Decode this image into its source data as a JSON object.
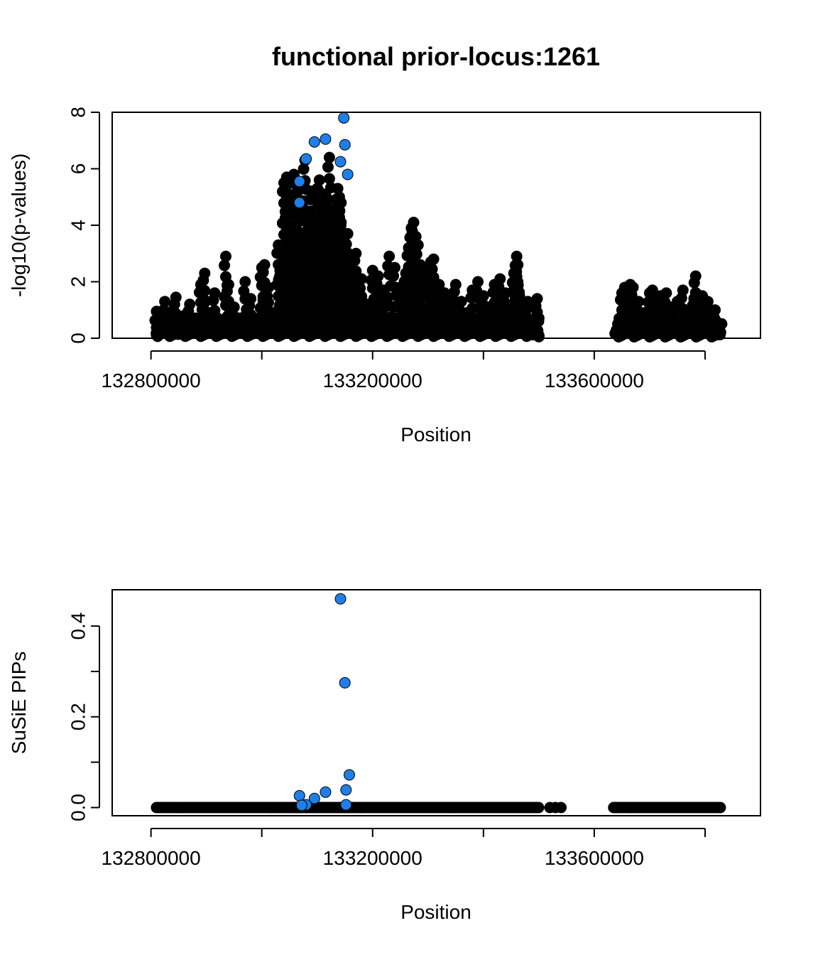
{
  "chart_data": [
    {
      "type": "scatter",
      "title": "functional prior-locus:1261",
      "xlabel": "Position",
      "ylabel": "-log10(p-values)",
      "xlim": [
        132730000,
        133900000
      ],
      "ylim": [
        0,
        8
      ],
      "xticks": [
        132800000,
        133000000,
        133200000,
        133400000,
        133600000,
        133800000
      ],
      "xtick_labels": [
        "132800000",
        "",
        "133200000",
        "",
        "133600000",
        ""
      ],
      "yticks": [
        0,
        2,
        4,
        6,
        8
      ],
      "ytick_labels": [
        "0",
        "2",
        "4",
        "6",
        "8"
      ],
      "grid": false,
      "series": [
        {
          "color": "#000000",
          "note_points": "background cloud (dense black points)",
          "points": [
            [
              132810000,
              0.95
            ],
            [
              132812000,
              0.2
            ],
            [
              132820000,
              0.6
            ],
            [
              132825000,
              1.3
            ],
            [
              132835000,
              0.4
            ],
            [
              132840000,
              1.0
            ],
            [
              132845000,
              1.45
            ],
            [
              132850000,
              0.3
            ],
            [
              132860000,
              0.8
            ],
            [
              132870000,
              1.2
            ],
            [
              132880000,
              0.5
            ],
            [
              132890000,
              1.9
            ],
            [
              132897000,
              2.3
            ],
            [
              132905000,
              0.9
            ],
            [
              132915000,
              1.6
            ],
            [
              132925000,
              0.4
            ],
            [
              132935000,
              2.9
            ],
            [
              132940000,
              1.9
            ],
            [
              132950000,
              1.1
            ],
            [
              132960000,
              0.6
            ],
            [
              132970000,
              2.0
            ],
            [
              132980000,
              1.4
            ],
            [
              132990000,
              0.7
            ],
            [
              133000000,
              2.5
            ],
            [
              133005000,
              2.6
            ],
            [
              133012000,
              1.8
            ],
            [
              133020000,
              0.9
            ],
            [
              133030000,
              3.3
            ],
            [
              133033000,
              2.4
            ],
            [
              133040000,
              5.5
            ],
            [
              133045000,
              5.7
            ],
            [
              133048000,
              4.0
            ],
            [
              133050000,
              4.7
            ],
            [
              133055000,
              3.2
            ],
            [
              133058000,
              5.8
            ],
            [
              133062000,
              3.9
            ],
            [
              133065000,
              5.2
            ],
            [
              133068000,
              2.6
            ],
            [
              133072000,
              3.5
            ],
            [
              133078000,
              6.3
            ],
            [
              133082000,
              4.5
            ],
            [
              133085000,
              3.0
            ],
            [
              133090000,
              5.2
            ],
            [
              133093000,
              4.2
            ],
            [
              133097000,
              3.1
            ],
            [
              133100000,
              5.3
            ],
            [
              133104000,
              5.6
            ],
            [
              133108000,
              4.3
            ],
            [
              133112000,
              4.7
            ],
            [
              133115000,
              5.1
            ],
            [
              133118000,
              4.0
            ],
            [
              133122000,
              6.4
            ],
            [
              133126000,
              4.3
            ],
            [
              133130000,
              2.0
            ],
            [
              133134000,
              4.1
            ],
            [
              133137000,
              5.3
            ],
            [
              133140000,
              5.0
            ],
            [
              133143000,
              4.8
            ],
            [
              133146000,
              3.5
            ],
            [
              133150000,
              2.9
            ],
            [
              133155000,
              3.7
            ],
            [
              133160000,
              2.5
            ],
            [
              133170000,
              3.0
            ],
            [
              133180000,
              2.1
            ],
            [
              133190000,
              1.2
            ],
            [
              133200000,
              2.4
            ],
            [
              133210000,
              2.2
            ],
            [
              133220000,
              1.7
            ],
            [
              133230000,
              2.9
            ],
            [
              133240000,
              2.5
            ],
            [
              133250000,
              1.8
            ],
            [
              133260000,
              2.3
            ],
            [
              133265000,
              3.2
            ],
            [
              133270000,
              3.9
            ],
            [
              133274000,
              4.1
            ],
            [
              133278000,
              3.6
            ],
            [
              133282000,
              3.3
            ],
            [
              133286000,
              2.6
            ],
            [
              133295000,
              2.1
            ],
            [
              133305000,
              2.7
            ],
            [
              133310000,
              2.8
            ],
            [
              133320000,
              1.9
            ],
            [
              133330000,
              1.6
            ],
            [
              133340000,
              1.4
            ],
            [
              133350000,
              1.9
            ],
            [
              133360000,
              1.3
            ],
            [
              133370000,
              0.9
            ],
            [
              133380000,
              1.7
            ],
            [
              133390000,
              2.0
            ],
            [
              133400000,
              1.5
            ],
            [
              133410000,
              1.1
            ],
            [
              133420000,
              1.9
            ],
            [
              133430000,
              2.1
            ],
            [
              133440000,
              1.6
            ],
            [
              133450000,
              0.8
            ],
            [
              133455000,
              2.3
            ],
            [
              133460000,
              2.9
            ],
            [
              133462000,
              2.6
            ],
            [
              133465000,
              1.5
            ],
            [
              133470000,
              0.5
            ],
            [
              133475000,
              1.0
            ],
            [
              133480000,
              1.3
            ],
            [
              133490000,
              0.25
            ],
            [
              133497000,
              1.4
            ],
            [
              133500000,
              0.1
            ],
            [
              133640000,
              0.25
            ],
            [
              133645000,
              0.7
            ],
            [
              133650000,
              1.6
            ],
            [
              133655000,
              1.8
            ],
            [
              133660000,
              1.2
            ],
            [
              133665000,
              1.9
            ],
            [
              133670000,
              1.8
            ],
            [
              133675000,
              0.6
            ],
            [
              133680000,
              1.3
            ],
            [
              133690000,
              0.9
            ],
            [
              133700000,
              1.6
            ],
            [
              133705000,
              1.7
            ],
            [
              133710000,
              1.2
            ],
            [
              133720000,
              1.5
            ],
            [
              133725000,
              0.8
            ],
            [
              133730000,
              1.6
            ],
            [
              133740000,
              1.1
            ],
            [
              133750000,
              1.3
            ],
            [
              133755000,
              0.5
            ],
            [
              133760000,
              1.7
            ],
            [
              133770000,
              1.0
            ],
            [
              133780000,
              1.4
            ],
            [
              133783000,
              2.2
            ],
            [
              133788000,
              0.9
            ],
            [
              133795000,
              1.5
            ],
            [
              133800000,
              0.6
            ],
            [
              133805000,
              1.3
            ],
            [
              133812000,
              0.8
            ],
            [
              133818000,
              1.0
            ],
            [
              133822000,
              0.4
            ],
            [
              133827000,
              0.2
            ]
          ]
        },
        {
          "color": "#1f7fe8",
          "note_points": "highlighted credible set (blue points)",
          "points": [
            [
              133068000,
              5.55
            ],
            [
              133068000,
              4.8
            ],
            [
              133080000,
              6.35
            ],
            [
              133095000,
              6.95
            ],
            [
              133115000,
              7.05
            ],
            [
              133142000,
              6.25
            ],
            [
              133148000,
              7.8
            ],
            [
              133150000,
              6.85
            ],
            [
              133155000,
              5.8
            ]
          ]
        }
      ]
    },
    {
      "type": "scatter",
      "title": "",
      "xlabel": "Position",
      "ylabel": "SuSiE PIPs",
      "xlim": [
        132730000,
        133900000
      ],
      "ylim": [
        -0.018,
        0.48
      ],
      "xticks": [
        132800000,
        133000000,
        133200000,
        133400000,
        133600000,
        133800000
      ],
      "xtick_labels": [
        "132800000",
        "",
        "133200000",
        "",
        "133600000",
        ""
      ],
      "yticks": [
        0.0,
        0.1,
        0.2,
        0.3,
        0.4
      ],
      "ytick_labels": [
        "0.0",
        "",
        "0.2",
        "",
        "0.4"
      ],
      "grid": false,
      "series": [
        {
          "color": "#000000",
          "note_points": "near-zero PIPs along two contiguous ranges",
          "ranges_at_zero": [
            [
              132810000,
              133500000
            ],
            [
              133635000,
              133830000
            ]
          ],
          "extra_points": [
            [
              133520000,
              0.0
            ],
            [
              133530000,
              0.0
            ],
            [
              133540000,
              0.0
            ]
          ]
        },
        {
          "color": "#1f7fe8",
          "points": [
            [
              133142000,
              0.46
            ],
            [
              133150000,
              0.275
            ],
            [
              133158000,
              0.072
            ],
            [
              133152000,
              0.039
            ],
            [
              133115000,
              0.034
            ],
            [
              133068000,
              0.026
            ],
            [
              133095000,
              0.02
            ],
            [
              133080000,
              0.006
            ],
            [
              133072000,
              0.005
            ],
            [
              133152000,
              0.006
            ]
          ]
        }
      ]
    }
  ]
}
